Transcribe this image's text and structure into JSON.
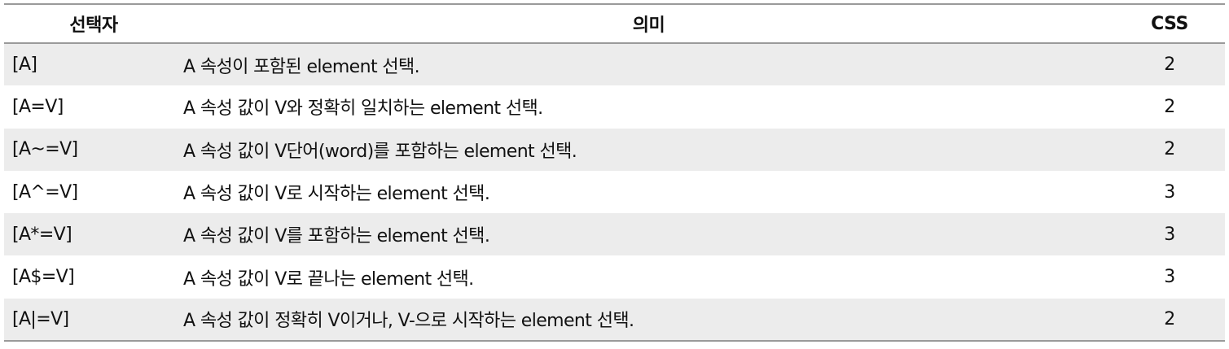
{
  "table": {
    "headers": [
      "선택자",
      "의미",
      "CSS"
    ],
    "rows": [
      {
        "selector": "[A]",
        "meaning": "A 속성이 포함된 element 선택.",
        "css": "2"
      },
      {
        "selector": "[A=V]",
        "meaning": "A 속성 값이 V와 정확히 일치하는 element 선택.",
        "css": "2"
      },
      {
        "selector": "[A~=V]",
        "meaning": "A 속성 값이 V단어(word)를 포함하는 element 선택.",
        "css": "2"
      },
      {
        "selector": "[A^=V]",
        "meaning": "A 속성 값이 V로 시작하는 element 선택.",
        "css": "3"
      },
      {
        "selector": "[A*=V]",
        "meaning": "A 속성 값이 V를 포함하는 element 선택.",
        "css": "3"
      },
      {
        "selector": "[A$=V]",
        "meaning": "A 속성 값이 V로 끝나는 element 선택.",
        "css": "3"
      },
      {
        "selector": "[A|=V]",
        "meaning": "A 속성 값이 정확히 V이거나, V-으로 시작하는 element 선택.",
        "css": "2"
      }
    ]
  },
  "colors": {
    "shaded_row": "#ececec",
    "border": "#9a9a9a",
    "text": "#111111"
  }
}
